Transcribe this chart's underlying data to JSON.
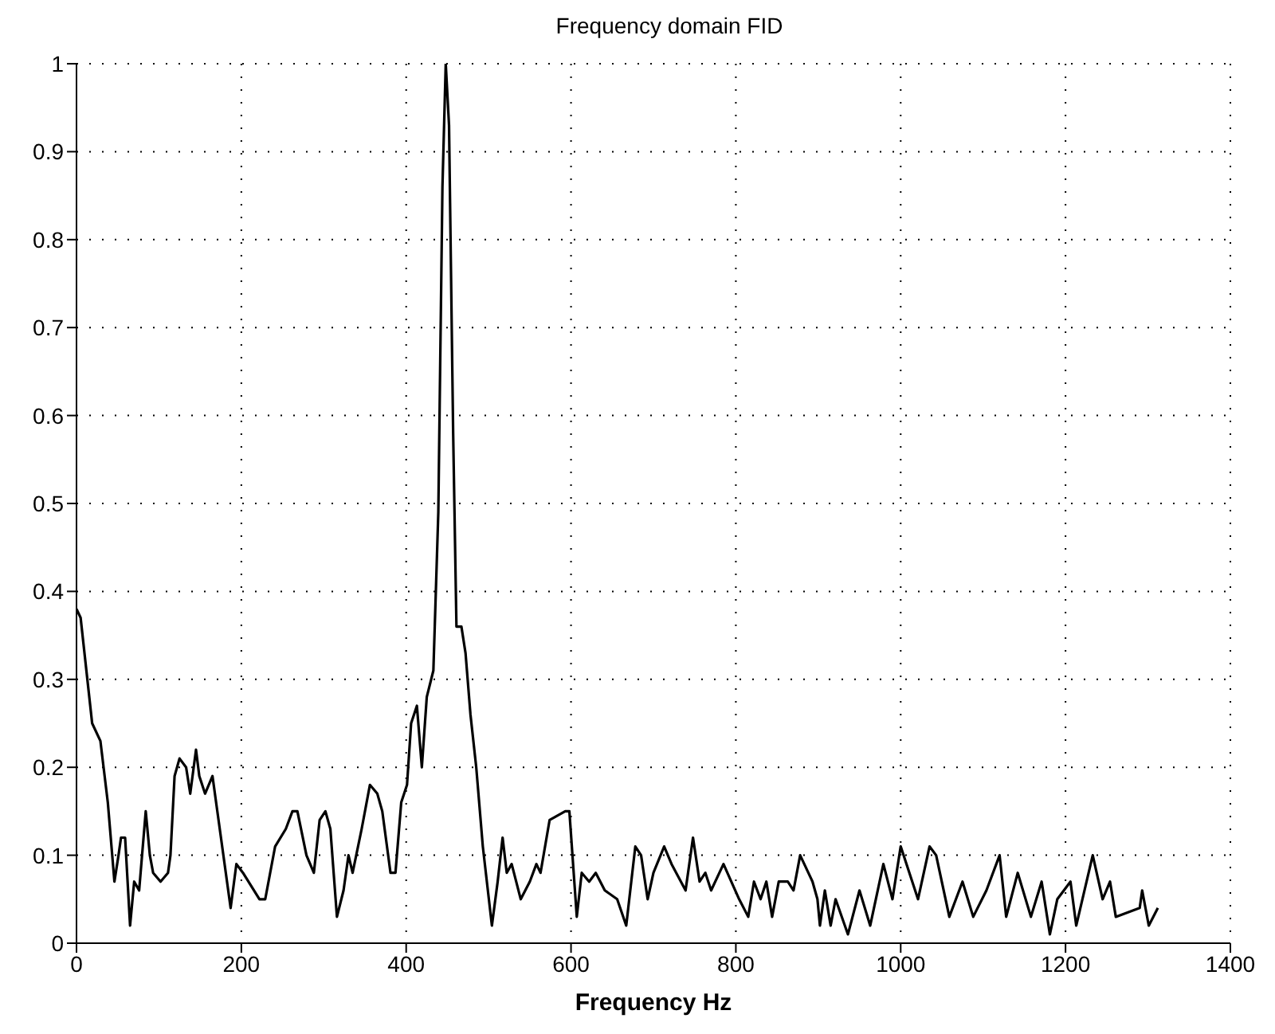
{
  "chart_data": {
    "type": "line",
    "title": "Frequency domain FID",
    "xlabel": "Frequency Hz",
    "xlim": [
      0,
      1400
    ],
    "xticks": [
      0,
      200,
      400,
      600,
      800,
      1000,
      1200,
      1400
    ],
    "ylim": [
      0,
      1
    ],
    "yticks": [
      0,
      0.1,
      0.2,
      0.3,
      0.4,
      0.5,
      0.6,
      0.7,
      0.8,
      0.9,
      1
    ],
    "grid": true,
    "marker": "none",
    "line_style": "solid",
    "series": [
      {
        "color": "#000000",
        "x": [
          0,
          5,
          19,
          29,
          38,
          46,
          51,
          54,
          59,
          65,
          70,
          76,
          84,
          89,
          93,
          102,
          111,
          114,
          119,
          125,
          133,
          138,
          145,
          149,
          156,
          165,
          187,
          194,
          202,
          222,
          229,
          241,
          254,
          262,
          268,
          279,
          288,
          295,
          302,
          308,
          316,
          324,
          330,
          335,
          346,
          356,
          365,
          371,
          381,
          387,
          394,
          401,
          406,
          413,
          419,
          425,
          433,
          439,
          444,
          448,
          452,
          457,
          461,
          467,
          472,
          478,
          485,
          493,
          504,
          511,
          517,
          522,
          528,
          539,
          550,
          558,
          563,
          574,
          593,
          598,
          607,
          613,
          622,
          630,
          641,
          656,
          667,
          678,
          685,
          693,
          700,
          713,
          722,
          739,
          748,
          756,
          763,
          770,
          785,
          804,
          815,
          822,
          830,
          837,
          844,
          852,
          863,
          870,
          878,
          893,
          899,
          902,
          908,
          915,
          921,
          936,
          950,
          963,
          979,
          990,
          1000,
          1021,
          1035,
          1043,
          1059,
          1075,
          1088,
          1104,
          1120,
          1128,
          1142,
          1158,
          1171,
          1181,
          1190,
          1206,
          1213,
          1233,
          1245,
          1254,
          1261,
          1290,
          1293,
          1301,
          1312
        ],
        "values": [
          0.38,
          0.37,
          0.25,
          0.23,
          0.16,
          0.07,
          0.1,
          0.12,
          0.12,
          0.02,
          0.07,
          0.06,
          0.15,
          0.1,
          0.08,
          0.07,
          0.08,
          0.1,
          0.19,
          0.21,
          0.2,
          0.17,
          0.22,
          0.19,
          0.17,
          0.19,
          0.04,
          0.09,
          0.08,
          0.05,
          0.05,
          0.11,
          0.13,
          0.15,
          0.15,
          0.1,
          0.08,
          0.14,
          0.15,
          0.13,
          0.03,
          0.06,
          0.1,
          0.08,
          0.13,
          0.18,
          0.17,
          0.15,
          0.08,
          0.08,
          0.16,
          0.18,
          0.25,
          0.27,
          0.2,
          0.28,
          0.31,
          0.49,
          0.86,
          1,
          0.93,
          0.58,
          0.36,
          0.36,
          0.33,
          0.26,
          0.2,
          0.11,
          0.02,
          0.07,
          0.12,
          0.08,
          0.09,
          0.05,
          0.07,
          0.09,
          0.08,
          0.14,
          0.15,
          0.15,
          0.03,
          0.08,
          0.07,
          0.08,
          0.06,
          0.05,
          0.02,
          0.11,
          0.1,
          0.05,
          0.08,
          0.11,
          0.09,
          0.06,
          0.12,
          0.07,
          0.08,
          0.06,
          0.09,
          0.05,
          0.03,
          0.07,
          0.05,
          0.07,
          0.03,
          0.07,
          0.07,
          0.06,
          0.1,
          0.07,
          0.05,
          0.02,
          0.06,
          0.02,
          0.05,
          0.01,
          0.06,
          0.02,
          0.09,
          0.05,
          0.11,
          0.05,
          0.11,
          0.1,
          0.03,
          0.07,
          0.03,
          0.06,
          0.1,
          0.03,
          0.08,
          0.03,
          0.07,
          0.01,
          0.05,
          0.07,
          0.02,
          0.1,
          0.05,
          0.07,
          0.03,
          0.04,
          0.06,
          0.02,
          0.04
        ]
      }
    ]
  }
}
